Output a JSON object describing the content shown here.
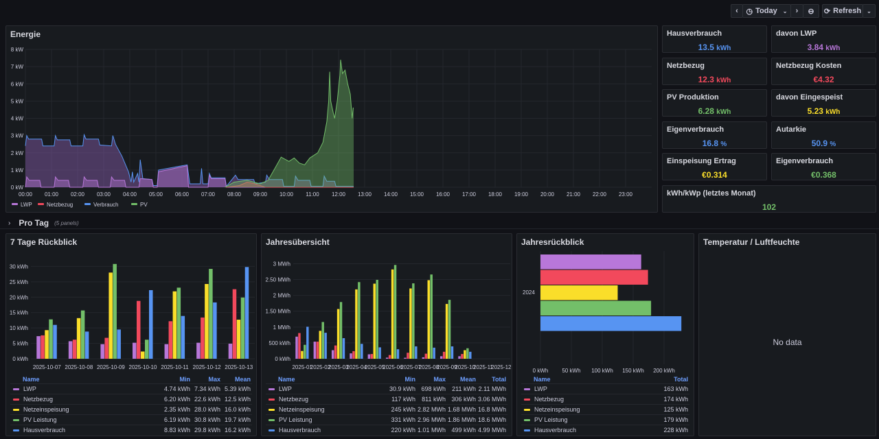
{
  "toolbar": {
    "time_range": "Today",
    "refresh": "Refresh"
  },
  "colors": {
    "LWP": "#b877d9",
    "Netzbezug": "#f2495c",
    "Netzeinspeisung": "#fade2a",
    "PV": "#73bf69",
    "Verbrauch": "#5794f2"
  },
  "energie": {
    "title": "Energie"
  },
  "stats": [
    {
      "title": "Hausverbrauch",
      "value": "13.5",
      "unit": "kWh",
      "color": "#5794f2"
    },
    {
      "title": "davon LWP",
      "value": "3.84",
      "unit": "kWh",
      "color": "#b877d9"
    },
    {
      "title": "Netzbezug",
      "value": "12.3",
      "unit": "kWh",
      "color": "#f2495c"
    },
    {
      "title": "Netzbezug Kosten",
      "value": "€4.32",
      "unit": "",
      "color": "#f2495c"
    },
    {
      "title": "PV Produktion",
      "value": "6.28",
      "unit": "kWh",
      "color": "#73bf69"
    },
    {
      "title": "davon Eingespeist",
      "value": "5.23",
      "unit": "kWh",
      "color": "#fade2a"
    },
    {
      "title": "Eigenverbrauch",
      "value": "16.8",
      "unit": "%",
      "color": "#5794f2"
    },
    {
      "title": "Autarkie",
      "value": "50.9",
      "unit": "%",
      "color": "#5794f2"
    },
    {
      "title": "Einspeisung Ertrag",
      "value": "€0.314",
      "unit": "",
      "color": "#fade2a"
    },
    {
      "title": "Eigenverbrauch",
      "value": "€0.368",
      "unit": "",
      "color": "#73bf69"
    },
    {
      "title": "kWh/kWp (letztes Monat)",
      "value": "102",
      "unit": "",
      "color": "#73bf69"
    }
  ],
  "row": {
    "title": "Pro Tag",
    "count": "(5 panels)"
  },
  "temp": {
    "title": "Temperatur / Luftfeuchte",
    "empty": "No data"
  },
  "chart_data": [
    {
      "type": "area",
      "title": "Energie",
      "x_unit": "hour of day",
      "y_unit": "kW",
      "ylim": [
        0,
        8
      ],
      "xlim": [
        0,
        24
      ],
      "y_ticks": [
        "0 kW",
        "1 kW",
        "2 kW",
        "3 kW",
        "4 kW",
        "5 kW",
        "6 kW",
        "7 kW",
        "8 kW"
      ],
      "x_ticks": [
        "00:00",
        "01:00",
        "02:00",
        "03:00",
        "04:00",
        "05:00",
        "06:00",
        "07:00",
        "08:00",
        "09:00",
        "10:00",
        "11:00",
        "12:00",
        "13:00",
        "14:00",
        "15:00",
        "16:00",
        "17:00",
        "18:00",
        "19:00",
        "20:00",
        "21:00",
        "22:00",
        "23:00"
      ],
      "legend": "bottom-left",
      "grid": true,
      "series": [
        {
          "name": "Verbrauch",
          "color": "#5794f2",
          "points": [
            [
              0,
              2.4
            ],
            [
              0.05,
              3.0
            ],
            [
              0.12,
              2.8
            ],
            [
              0.62,
              2.8
            ],
            [
              0.67,
              2.4
            ],
            [
              1.1,
              2.4
            ],
            [
              1.15,
              3.0
            ],
            [
              1.22,
              2.75
            ],
            [
              1.7,
              2.75
            ],
            [
              1.75,
              2.4
            ],
            [
              2.2,
              2.4
            ],
            [
              2.25,
              3.05
            ],
            [
              2.32,
              2.8
            ],
            [
              2.8,
              2.8
            ],
            [
              2.85,
              2.45
            ],
            [
              3.3,
              2.4
            ],
            [
              3.35,
              3.0
            ],
            [
              3.45,
              2.5
            ],
            [
              3.7,
              1.8
            ],
            [
              3.95,
              0.9
            ],
            [
              4.05,
              0.3
            ],
            [
              4.1,
              0.9
            ],
            [
              4.15,
              0.3
            ],
            [
              4.3,
              0.8
            ],
            [
              4.35,
              0.3
            ],
            [
              4.4,
              1.6
            ],
            [
              4.5,
              0.5
            ],
            [
              4.85,
              0.45
            ],
            [
              4.9,
              0.1
            ],
            [
              5.05,
              0.1
            ],
            [
              5.1,
              1.0
            ],
            [
              6.2,
              1.3
            ],
            [
              6.3,
              0.2
            ],
            [
              6.7,
              0.2
            ],
            [
              6.75,
              1.1
            ],
            [
              6.8,
              0.2
            ],
            [
              7.0,
              0.2
            ],
            [
              7.05,
              0.8
            ],
            [
              7.12,
              0.55
            ],
            [
              7.65,
              0.55
            ],
            [
              7.7,
              0.05
            ],
            [
              8.05,
              0.7
            ],
            [
              8.15,
              0.45
            ],
            [
              8.75,
              0.45
            ],
            [
              8.8,
              0.2
            ],
            [
              9.2,
              0.3
            ],
            [
              9.25,
              0.7
            ],
            [
              9.35,
              0.45
            ],
            [
              9.85,
              0.45
            ],
            [
              9.9,
              0.05
            ],
            [
              10.3,
              0.05
            ],
            [
              10.35,
              0.65
            ],
            [
              10.45,
              0.4
            ],
            [
              10.9,
              0.4
            ],
            [
              10.95,
              0.05
            ],
            [
              11.4,
              0.05
            ],
            [
              11.45,
              0.65
            ],
            [
              11.55,
              0.35
            ],
            [
              11.85,
              0.35
            ],
            [
              11.9,
              0.05
            ],
            [
              12.58,
              0.05
            ]
          ]
        },
        {
          "name": "LWP",
          "color": "#b877d9",
          "points": [
            [
              0,
              0
            ],
            [
              0.05,
              0.6
            ],
            [
              0.15,
              0.4
            ],
            [
              0.55,
              0.4
            ],
            [
              0.6,
              0
            ],
            [
              1.1,
              0
            ],
            [
              1.15,
              0.6
            ],
            [
              1.25,
              0.4
            ],
            [
              1.65,
              0.4
            ],
            [
              1.7,
              0
            ],
            [
              2.2,
              0
            ],
            [
              2.25,
              0.6
            ],
            [
              2.35,
              0.4
            ],
            [
              2.75,
              0.4
            ],
            [
              2.8,
              0
            ],
            [
              3.25,
              0
            ],
            [
              3.3,
              0.6
            ],
            [
              3.4,
              0.4
            ],
            [
              3.8,
              0.4
            ],
            [
              3.85,
              0
            ],
            [
              4.35,
              0
            ],
            [
              4.4,
              0.5
            ],
            [
              4.85,
              0.45
            ],
            [
              4.9,
              0
            ],
            [
              5.05,
              0
            ],
            [
              5.1,
              0.9
            ],
            [
              6.2,
              1.25
            ],
            [
              6.25,
              0
            ],
            [
              7.0,
              0
            ],
            [
              7.05,
              0.7
            ],
            [
              7.12,
              0.5
            ],
            [
              7.65,
              0.5
            ],
            [
              7.7,
              0
            ],
            [
              12.58,
              0
            ]
          ]
        },
        {
          "name": "Netzbezug",
          "color": "#f2495c",
          "points": [
            [
              7.7,
              0
            ],
            [
              8.2,
              0.1
            ],
            [
              8.5,
              0.3
            ],
            [
              8.8,
              0.2
            ],
            [
              9.2,
              0
            ],
            [
              12.58,
              0
            ]
          ]
        },
        {
          "name": "PV",
          "color": "#73bf69",
          "points": [
            [
              7.65,
              0
            ],
            [
              8.0,
              0.3
            ],
            [
              8.5,
              0.4
            ],
            [
              9.0,
              0.2
            ],
            [
              9.3,
              0.4
            ],
            [
              9.6,
              1.2
            ],
            [
              9.8,
              1.75
            ],
            [
              10.1,
              1.5
            ],
            [
              10.3,
              1.7
            ],
            [
              10.5,
              1.4
            ],
            [
              10.7,
              1.3
            ],
            [
              10.9,
              1.7
            ],
            [
              11.2,
              2.0
            ],
            [
              11.4,
              2.6
            ],
            [
              11.55,
              3.8
            ],
            [
              11.62,
              5.0
            ],
            [
              11.66,
              6.7
            ],
            [
              11.7,
              5.0
            ],
            [
              11.8,
              4.3
            ],
            [
              11.85,
              4.0
            ],
            [
              11.95,
              5.0
            ],
            [
              12.05,
              6.5
            ],
            [
              12.08,
              7.4
            ],
            [
              12.15,
              6.6
            ],
            [
              12.25,
              6.8
            ],
            [
              12.35,
              6.0
            ],
            [
              12.45,
              5.4
            ],
            [
              12.52,
              4.0
            ],
            [
              12.56,
              4.6
            ],
            [
              12.58,
              4.6
            ]
          ]
        }
      ]
    },
    {
      "type": "bar",
      "title": "7 Tage Rückblick",
      "unit": "kWh",
      "ylim": [
        0,
        35
      ],
      "y_ticks": [
        0,
        5,
        10,
        15,
        20,
        25,
        30
      ],
      "categories": [
        "2025-10-07",
        "2025-10-08",
        "2025-10-09",
        "2025-10-10",
        "2025-10-11",
        "2025-10-12",
        "2025-10-13"
      ],
      "series": [
        {
          "name": "LWP",
          "color": "#b877d9",
          "values": [
            7.34,
            5.7,
            4.74,
            5.2,
            4.74,
            5.2,
            4.9
          ],
          "min": "4.74 kWh",
          "max": "7.34 kWh",
          "mean": "5.39 kWh"
        },
        {
          "name": "Netzbezug",
          "color": "#f2495c",
          "values": [
            7.6,
            6.2,
            6.8,
            18.8,
            12.2,
            13.4,
            22.6
          ],
          "min": "6.20 kWh",
          "max": "22.6 kWh",
          "mean": "12.5 kWh"
        },
        {
          "name": "Netzeinspeisung",
          "color": "#fade2a",
          "values": [
            9.3,
            13.2,
            28.0,
            2.35,
            21.9,
            24.3,
            12.7
          ],
          "min": "2.35 kWh",
          "max": "28.0 kWh",
          "mean": "16.0 kWh"
        },
        {
          "name": "PV Leistung",
          "color": "#73bf69",
          "values": [
            12.8,
            15.7,
            30.8,
            6.19,
            23.1,
            29.2,
            19.9
          ],
          "min": "6.19 kWh",
          "max": "30.8 kWh",
          "mean": "19.7 kWh"
        },
        {
          "name": "Hausverbrauch",
          "color": "#5794f2",
          "values": [
            11.0,
            8.83,
            9.5,
            22.3,
            13.9,
            18.3,
            29.8
          ],
          "min": "8.83 kWh",
          "max": "29.8 kWh",
          "mean": "16.2 kWh"
        }
      ],
      "columns": [
        "Name",
        "Min",
        "Max",
        "Mean"
      ]
    },
    {
      "type": "bar",
      "title": "Jahresübersicht",
      "unit": "kWh",
      "ylim": [
        0,
        3400
      ],
      "y_ticks": [
        0,
        500,
        1000,
        1500,
        2000,
        2500,
        3000
      ],
      "y_tick_labels": [
        "0 kWh",
        "500 kWh",
        "1 MWh",
        "1.50 MWh",
        "2 MWh",
        "2.50 MWh",
        "3 MWh"
      ],
      "categories": [
        "2025-01",
        "2025-02",
        "2025-03",
        "2025-04",
        "2025-05",
        "2025-06",
        "2025-07",
        "2025-08",
        "2025-09",
        "2025-10",
        "2025-11",
        "2025-12"
      ],
      "series": [
        {
          "name": "LWP",
          "color": "#b877d9",
          "values": [
            698,
            540,
            270,
            170,
            140,
            35,
            30.9,
            45,
            80,
            80,
            null,
            null
          ],
          "min": "30.9 kWh",
          "max": "698 kWh",
          "mean": "211 kWh",
          "total": "2.11 MWh"
        },
        {
          "name": "Netzbezug",
          "color": "#f2495c",
          "values": [
            811,
            540,
            420,
            240,
            150,
            117,
            190,
            160,
            220,
            150,
            null,
            null
          ],
          "min": "117 kWh",
          "max": "811 kWh",
          "mean": "306 kWh",
          "total": "3.06 MWh"
        },
        {
          "name": "Netzeinspeisung",
          "color": "#fade2a",
          "values": [
            245,
            880,
            1570,
            2190,
            2370,
            2820,
            2220,
            2480,
            1730,
            270,
            null,
            null
          ],
          "min": "245 kWh",
          "max": "2.82 MWh",
          "mean": "1.68 MWh",
          "total": "16.8 MWh"
        },
        {
          "name": "PV Leistung",
          "color": "#73bf69",
          "values": [
            440,
            1160,
            1790,
            2420,
            2490,
            2960,
            2380,
            2660,
            1860,
            331,
            null,
            null
          ],
          "min": "331 kWh",
          "max": "2.96 MWh",
          "mean": "1.86 MWh",
          "total": "18.6 MWh"
        },
        {
          "name": "Hausverbrauch",
          "color": "#5794f2",
          "values": [
            1010,
            820,
            650,
            470,
            360,
            300,
            390,
            350,
            390,
            220,
            null,
            null
          ],
          "min": "220 kWh",
          "max": "1.01 MWh",
          "mean": "499 kWh",
          "total": "4.99 MWh"
        }
      ],
      "columns": [
        "Name",
        "Min",
        "Max",
        "Mean",
        "Total"
      ]
    },
    {
      "type": "bar",
      "orientation": "horizontal",
      "title": "Jahresrückblick",
      "unit": "kWh",
      "xlim": [
        0,
        230
      ],
      "x_ticks": [
        0,
        50,
        100,
        150,
        200
      ],
      "categories": [
        "2024"
      ],
      "series": [
        {
          "name": "LWP",
          "color": "#b877d9",
          "values": [
            163
          ],
          "total": "163 kWh"
        },
        {
          "name": "Netzbezug",
          "color": "#f2495c",
          "values": [
            174
          ],
          "total": "174 kWh"
        },
        {
          "name": "Netzeinspeisung",
          "color": "#fade2a",
          "values": [
            125
          ],
          "total": "125 kWh"
        },
        {
          "name": "PV Leistung",
          "color": "#73bf69",
          "values": [
            179
          ],
          "total": "179 kWh"
        },
        {
          "name": "Hausverbrauch",
          "color": "#5794f2",
          "values": [
            228
          ],
          "total": "228 kWh"
        }
      ],
      "columns": [
        "Name",
        "Total"
      ]
    }
  ]
}
